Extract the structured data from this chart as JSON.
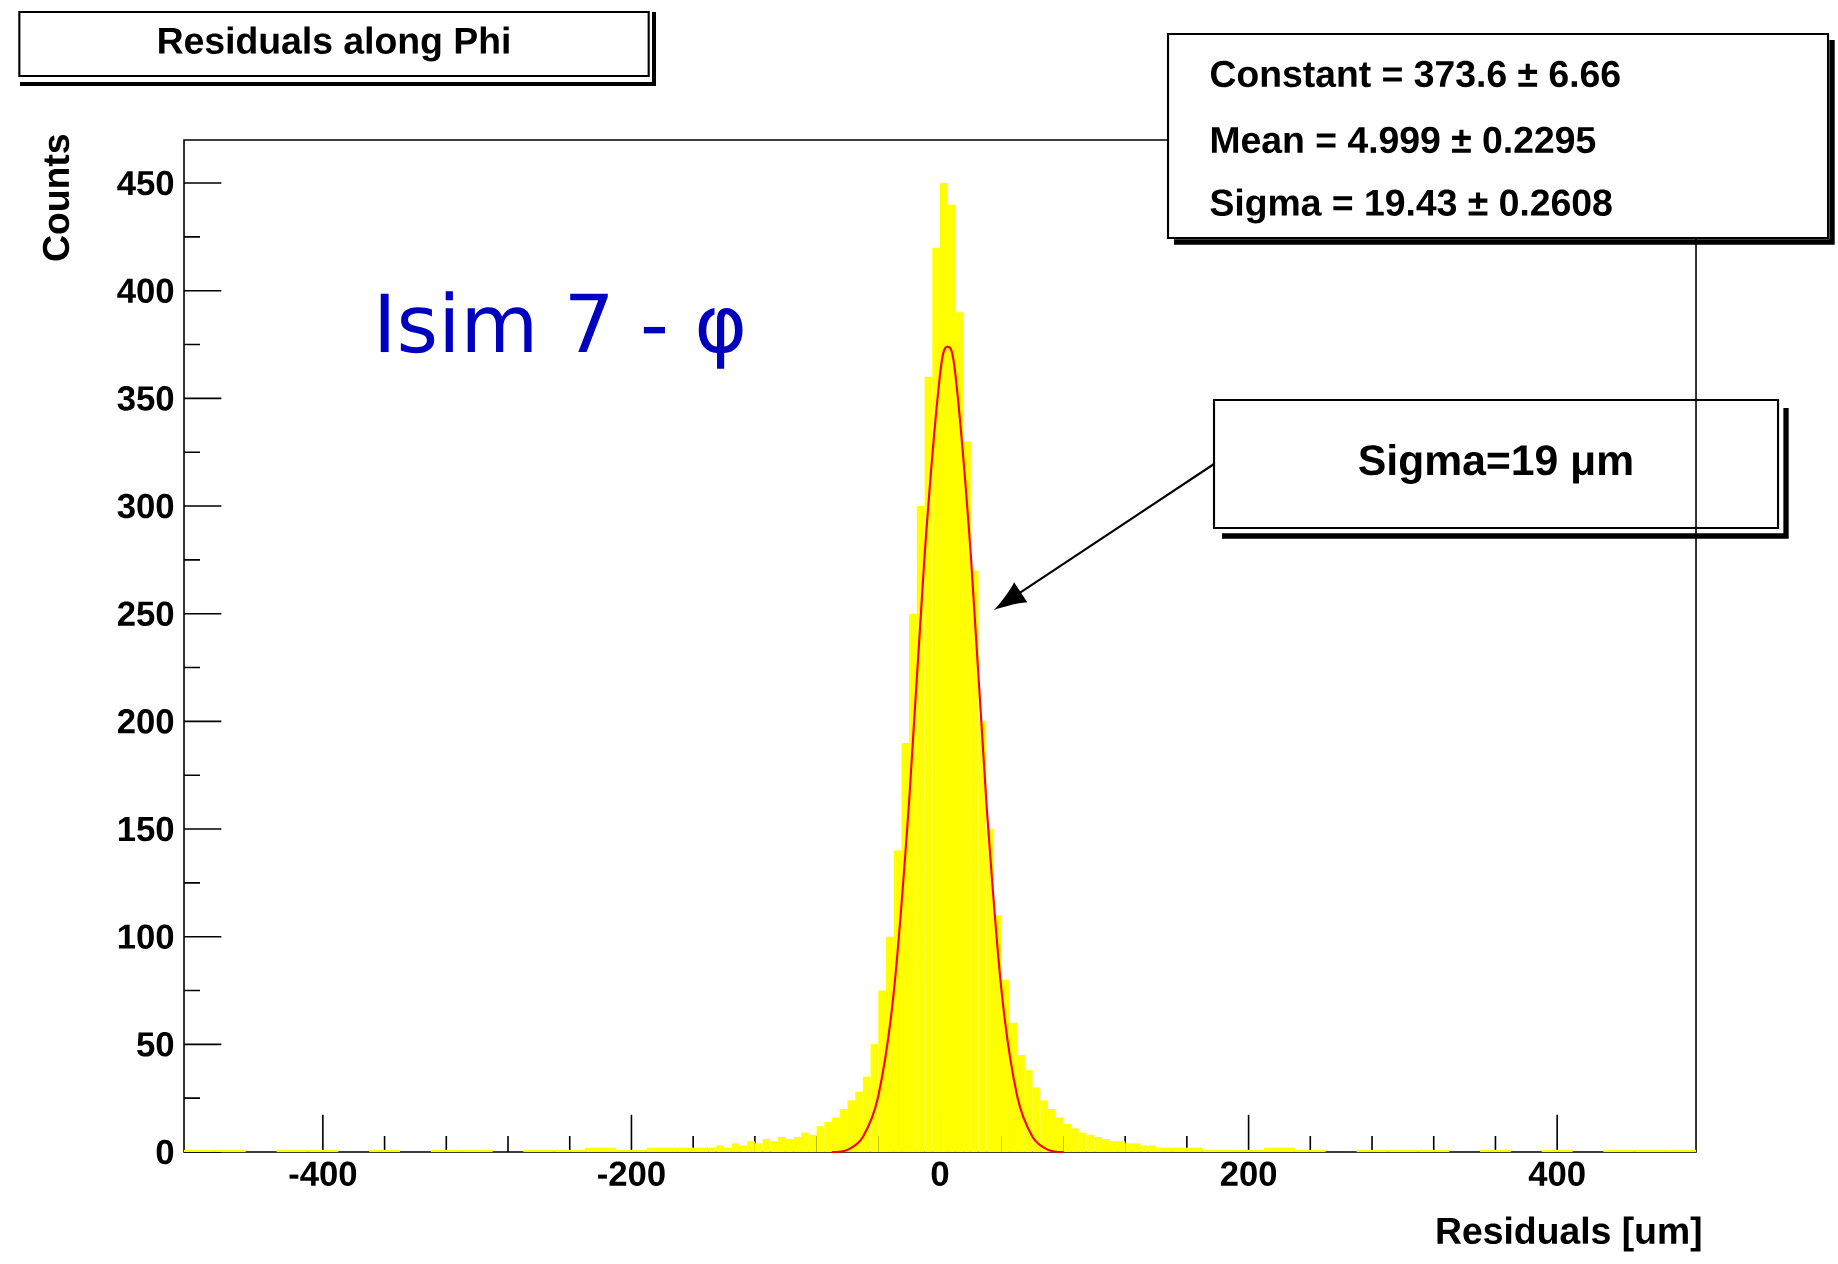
{
  "chart_data": {
    "type": "histogram",
    "title": "Residuals along Phi",
    "xlabel": "Residuals [um]",
    "ylabel": "Counts",
    "bins": [
      -490,
      -470,
      -450,
      -430,
      -410,
      -390,
      -370,
      -350,
      -330,
      -310,
      -290,
      -270,
      -250,
      -230,
      -210,
      -190,
      -170,
      -150,
      -145,
      -140,
      -135,
      -130,
      -125,
      -120,
      -115,
      -110,
      -105,
      -100,
      -95,
      -90,
      -85,
      -80,
      -75,
      -70,
      -65,
      -60,
      -55,
      -50,
      -45,
      -40,
      -35,
      -30,
      -25,
      -20,
      -15,
      -10,
      -5,
      0,
      5,
      10,
      15,
      20,
      25,
      30,
      35,
      40,
      45,
      50,
      55,
      60,
      65,
      70,
      75,
      80,
      85,
      90,
      95,
      100,
      105,
      110,
      115,
      120,
      125,
      130,
      135,
      140,
      145,
      150,
      170,
      190,
      210,
      230,
      250,
      270,
      290,
      310,
      330,
      350,
      370,
      390,
      410,
      430,
      450,
      470,
      490
    ],
    "values": [
      1,
      1,
      0,
      1,
      1,
      0,
      1,
      0,
      1,
      1,
      0,
      1,
      1,
      2,
      1,
      2,
      2,
      2,
      3,
      2,
      4,
      3,
      5,
      4,
      6,
      5,
      7,
      6,
      7,
      9,
      8,
      12,
      14,
      16,
      20,
      24,
      28,
      35,
      50,
      75,
      100,
      140,
      190,
      250,
      300,
      360,
      420,
      450,
      440,
      390,
      330,
      270,
      200,
      150,
      110,
      80,
      60,
      45,
      38,
      30,
      24,
      20,
      16,
      13,
      11,
      9,
      8,
      7,
      6,
      5,
      5,
      4,
      4,
      3,
      3,
      2,
      2,
      2,
      1,
      1,
      2,
      1,
      0,
      1,
      1,
      1,
      0,
      1,
      0,
      1,
      0,
      1,
      1,
      1
    ],
    "color": "#ffff00",
    "series": [
      {
        "type": "line",
        "color": "#ff0000",
        "x": [
          -70,
          -60,
          -50,
          -40,
          -30,
          -20,
          -10,
          0,
          5,
          10,
          20,
          30,
          40,
          50,
          60,
          70,
          80
        ],
        "values": [
          0,
          1,
          7,
          26,
          74,
          163,
          277,
          361,
          374,
          361,
          277,
          163,
          74,
          26,
          7,
          1,
          0
        ]
      }
    ],
    "xlim": [
      -490,
      490
    ],
    "ylim": [
      0,
      470
    ],
    "xticks": [
      -400,
      -200,
      0,
      200,
      400
    ],
    "yticks": [
      0,
      50,
      100,
      150,
      200,
      250,
      300,
      350,
      400,
      450
    ],
    "annotations": [
      "Constant = 373.6 ± 6.66",
      "Mean = 4.999 ± 0.2295",
      "Sigma = 19.43 ± 0.2608",
      "Isim 7 - φ",
      "Sigma=19 μm"
    ]
  }
}
